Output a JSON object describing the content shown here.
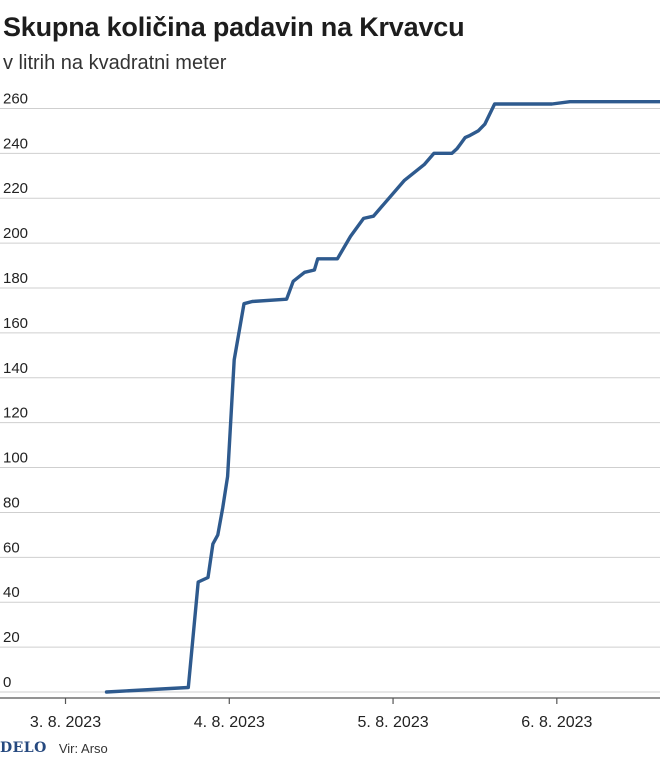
{
  "title": "Skupna količina padavin na Krvavcu",
  "subtitle": "v litrih na kvadratni meter",
  "footer": {
    "logo": "DELO",
    "source": "Vir: Arso"
  },
  "colors": {
    "line": "#2e5a8e",
    "grid": "#cfcfcf",
    "axis": "#555555",
    "text": "#222222"
  },
  "chart_data": {
    "type": "line",
    "title": "Skupna količina padavin na Krvavcu",
    "subtitle": "v litrih na kvadratni meter",
    "xlabel": "",
    "ylabel": "",
    "x_tick_labels": [
      "3. 8. 2023",
      "4. 8. 2023",
      "5. 8. 2023",
      "6. 8. 2023"
    ],
    "x_ticks": [
      0,
      1,
      2,
      3
    ],
    "y_ticks": [
      0,
      20,
      40,
      60,
      80,
      100,
      120,
      140,
      160,
      180,
      200,
      220,
      240,
      260
    ],
    "ylim": [
      0,
      270
    ],
    "xlim": [
      -0.4,
      3.63
    ],
    "grid": "horizontal",
    "legend": "none",
    "series": [
      {
        "x": [
          0.25,
          0.75,
          0.81,
          0.87,
          0.9,
          0.93,
          0.96,
          0.99,
          1.03,
          1.09,
          1.14,
          1.35,
          1.39,
          1.46,
          1.52,
          1.54,
          1.6,
          1.66,
          1.74,
          1.82,
          1.88,
          2.07,
          2.19,
          2.25,
          2.32,
          2.36,
          2.39,
          2.41,
          2.44,
          2.47,
          2.52,
          2.56,
          2.62,
          2.67,
          2.77,
          2.97,
          3.08,
          3.12,
          3.32,
          3.63
        ],
        "y": [
          0,
          2,
          49,
          51,
          66,
          70,
          82,
          96,
          148,
          173,
          174,
          175,
          183,
          187,
          188,
          193,
          193,
          193,
          203,
          211,
          212,
          228,
          235,
          240,
          240,
          240,
          242,
          244,
          247,
          248,
          250,
          253,
          262,
          262,
          262,
          262,
          263,
          263,
          263,
          263
        ]
      }
    ]
  }
}
